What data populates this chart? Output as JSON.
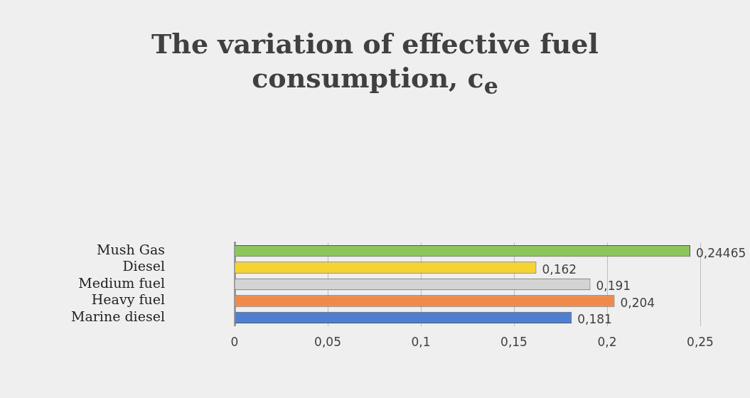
{
  "chart_data": {
    "type": "bar",
    "orientation": "horizontal",
    "title": "The variation of effective fuel consumption, c$_{e}$",
    "categories": [
      "Mush Gas",
      "Diesel",
      "Medium fuel",
      "Heavy fuel",
      "Marine diesel"
    ],
    "values": [
      0.24465,
      0.162,
      0.191,
      0.204,
      0.181
    ],
    "colors": [
      "#8cc65a",
      "#f7d332",
      "#d4d4d4",
      "#f08a4b",
      "#4f7fd2"
    ],
    "value_labels": [
      "0,24465",
      "0,162",
      "0,191",
      "0,204",
      "0,181"
    ],
    "xlim": [
      0,
      0.25
    ],
    "xticks": [
      {
        "value": 0,
        "label": "0"
      },
      {
        "value": 0.05,
        "label": "0,05"
      },
      {
        "value": 0.1,
        "label": "0,1"
      },
      {
        "value": 0.15,
        "label": "0,15"
      },
      {
        "value": 0.2,
        "label": "0,2"
      },
      {
        "value": 0.25,
        "label": "0,25"
      }
    ],
    "grid": "x",
    "legend": false
  }
}
